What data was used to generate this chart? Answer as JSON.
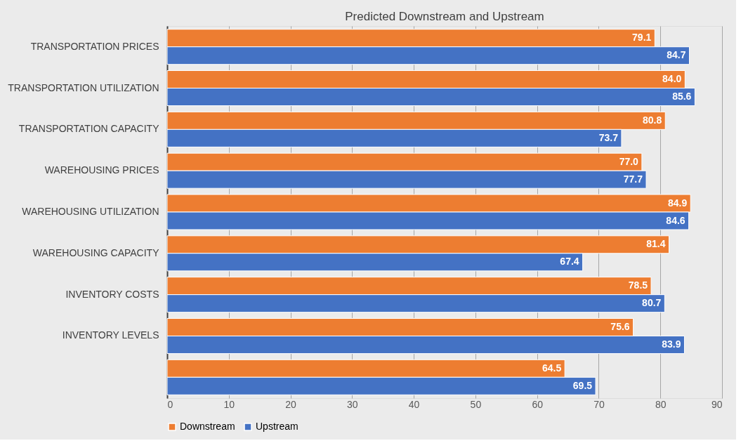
{
  "chart_data": {
    "type": "bar",
    "orientation": "horizontal",
    "title": "Predicted Downstream and Upstream",
    "categories": [
      "TRANSPORTATION PRICES",
      "TRANSPORTATION UTILIZATION",
      "TRANSPORTATION CAPACITY",
      "WAREHOUSING PRICES",
      "WAREHOUSING UTILIZATION",
      "WAREHOUSING CAPACITY",
      "INVENTORY COSTS",
      "INVENTORY LEVELS",
      null
    ],
    "series": [
      {
        "name": "Downstream",
        "color": "#ed7d31",
        "values": [
          79.1,
          84.0,
          80.8,
          77.0,
          84.9,
          81.4,
          78.5,
          75.6,
          64.5
        ],
        "value_labels": [
          "79.1",
          "84.0",
          "80.8",
          "77.0",
          "84.9",
          "81.4",
          "78.5",
          "75.6",
          "64.5"
        ]
      },
      {
        "name": "Upstream",
        "color": "#4472c4",
        "values": [
          84.7,
          85.6,
          73.7,
          77.7,
          84.6,
          67.4,
          80.7,
          83.9,
          69.5
        ],
        "value_labels": [
          "84.7",
          "85.6",
          "73.7",
          "77.7",
          "84.6",
          "67.4",
          "80.7",
          "83.9",
          "69.5"
        ]
      }
    ],
    "xlim": [
      0,
      90
    ],
    "xticks": [
      0,
      10,
      20,
      30,
      40,
      50,
      60,
      70,
      80,
      90
    ],
    "grid": "x",
    "legend": "bottom"
  }
}
